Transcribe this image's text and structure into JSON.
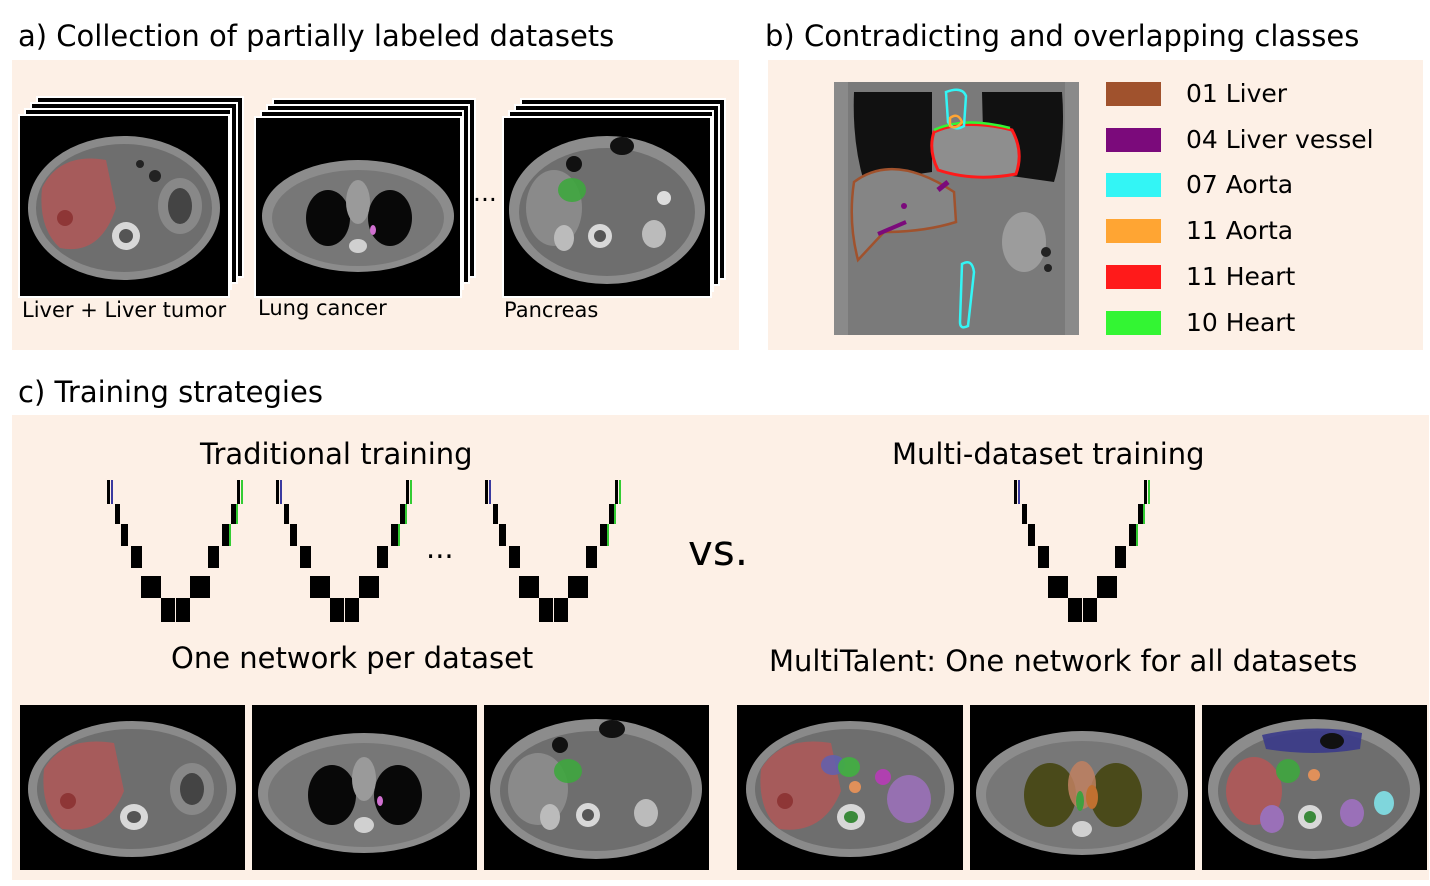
{
  "panel_a": {
    "title": "a) Collection of partially labeled datasets",
    "ellipsis": "...",
    "datasets": [
      "Liver + Liver tumor",
      "Lung cancer",
      "Pancreas"
    ]
  },
  "panel_b": {
    "title": "b) Contradicting and overlapping classes",
    "legend": [
      {
        "label": "01 Liver",
        "color": "#a0522d"
      },
      {
        "label": "04 Liver vessel",
        "color": "#7b0a7b"
      },
      {
        "label": "07 Aorta",
        "color": "#33f5f5"
      },
      {
        "label": "11 Aorta",
        "color": "#ffa533"
      },
      {
        "label": "11 Heart",
        "color": "#ff1a1a"
      },
      {
        "label": "10 Heart",
        "color": "#33f533"
      }
    ]
  },
  "panel_c": {
    "title": "c) Training strategies",
    "traditional_heading": "Traditional training",
    "traditional_caption": "One network per dataset",
    "ellipsis": "...",
    "versus": "vs.",
    "multi_heading": "Multi-dataset training",
    "multi_caption": "MultiTalent: One network for all datasets"
  }
}
